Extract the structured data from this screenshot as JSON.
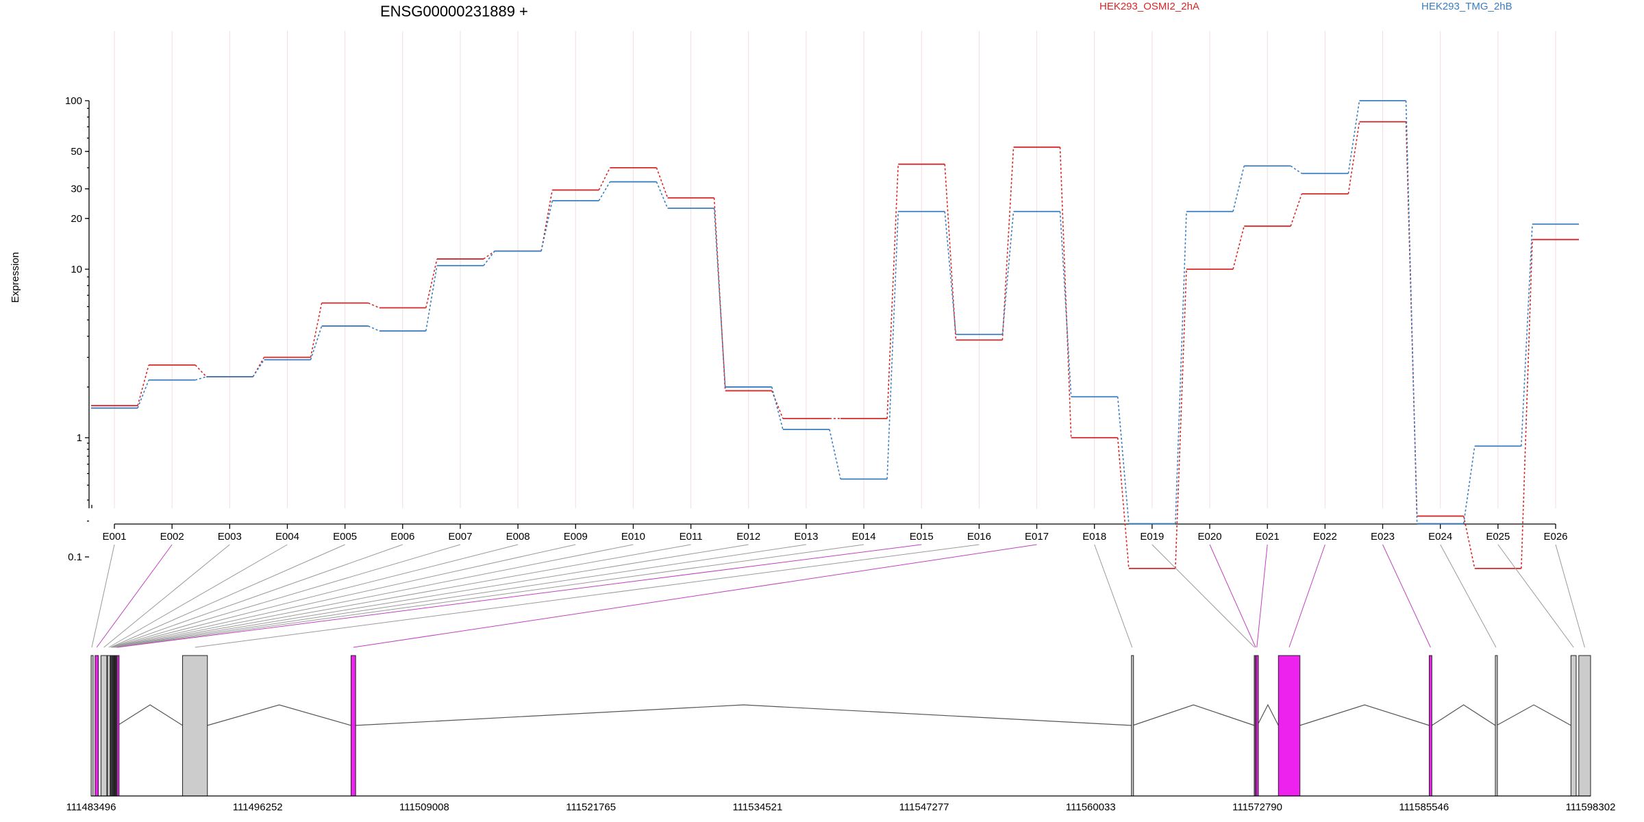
{
  "chart_data": {
    "type": "line",
    "title": "ENSG00000231889 +",
    "ylabel": "Expression",
    "y_scale": "log",
    "ylim": [
      0.08,
      120
    ],
    "y_ticks": [
      "100",
      "50",
      "30",
      "20",
      "10",
      "1",
      "0.1"
    ],
    "grid": "vertical, faint",
    "legend_position": "top",
    "categories": [
      "E001",
      "E002",
      "E003",
      "E004",
      "E005",
      "E006",
      "E007",
      "E008",
      "E009",
      "E010",
      "E011",
      "E012",
      "E013",
      "E014",
      "E015",
      "E016",
      "E017",
      "E018",
      "E019",
      "E020",
      "E021",
      "E022",
      "E023",
      "E024",
      "E025",
      "E026"
    ],
    "series": [
      {
        "name": "HEK293_OSMI2_2hA",
        "color": "#d62728",
        "values": [
          1.55,
          2.7,
          2.3,
          3.0,
          6.3,
          5.9,
          11.5,
          12.8,
          29.5,
          40,
          26.5,
          1.9,
          1.3,
          1.3,
          42,
          3.8,
          53,
          1.0,
          0.08,
          10,
          18,
          28,
          75,
          0.22,
          0.08,
          15
        ]
      },
      {
        "name": "HEK293_TMG_2hB",
        "color": "#3a7dbf",
        "values": [
          1.5,
          2.2,
          2.3,
          2.9,
          4.6,
          4.3,
          10.5,
          12.8,
          25.5,
          33,
          23,
          2.0,
          1.12,
          0.45,
          22,
          4.1,
          22,
          1.75,
          0.19,
          22,
          41,
          37,
          100,
          0.19,
          0.85,
          18.5
        ]
      }
    ],
    "gene_model": {
      "coordinate_labels": [
        "111483496",
        "111496252",
        "111509008",
        "111521765",
        "111534521",
        "111547277",
        "111560033",
        "111572790",
        "111585546",
        "111598302"
      ],
      "exon_colors": {
        "normal": "#cccccc",
        "highlight": "#ee22ee"
      },
      "highlighted_exons": [
        "E002",
        "E015",
        "E017",
        "E020",
        "E021",
        "E022",
        "E023"
      ]
    }
  }
}
